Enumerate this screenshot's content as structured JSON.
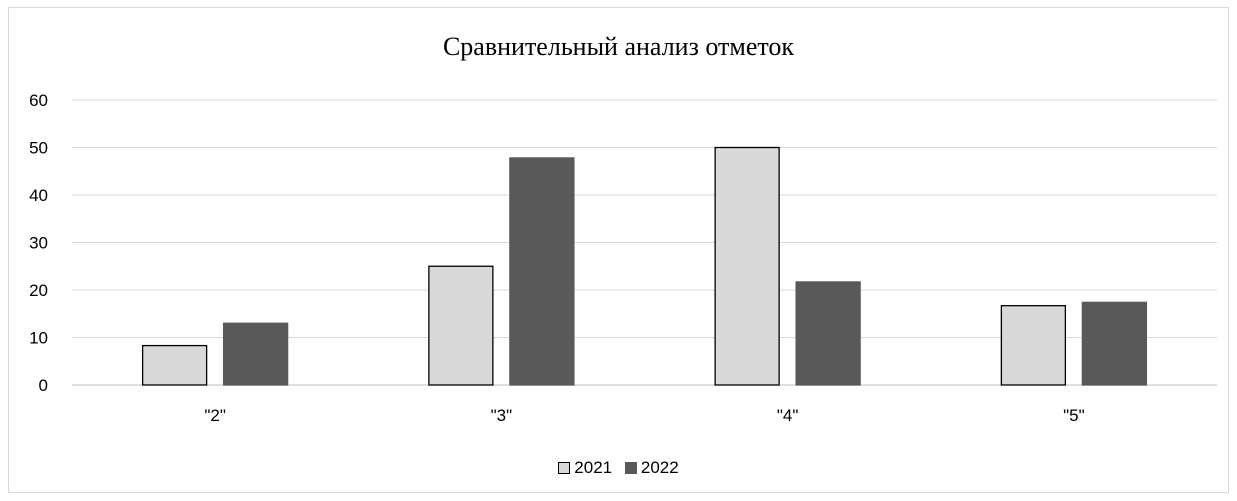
{
  "chart_data": {
    "type": "bar",
    "title": "Сравнительный анализ отметок",
    "categories": [
      "\"2\"",
      "\"3\"",
      "\"4\"",
      "\"5\""
    ],
    "series": [
      {
        "name": "2021",
        "values": [
          8.3,
          25,
          50,
          16.7
        ],
        "color": "#d9d9d9",
        "stroke": "#000000"
      },
      {
        "name": "2022",
        "values": [
          13,
          47.8,
          21.7,
          17.4
        ],
        "color": "#595959",
        "stroke": "#595959"
      }
    ],
    "ylim": [
      0,
      60
    ],
    "yticks": [
      0,
      10,
      20,
      30,
      40,
      50,
      60
    ],
    "grid": true,
    "legend_position": "bottom"
  }
}
